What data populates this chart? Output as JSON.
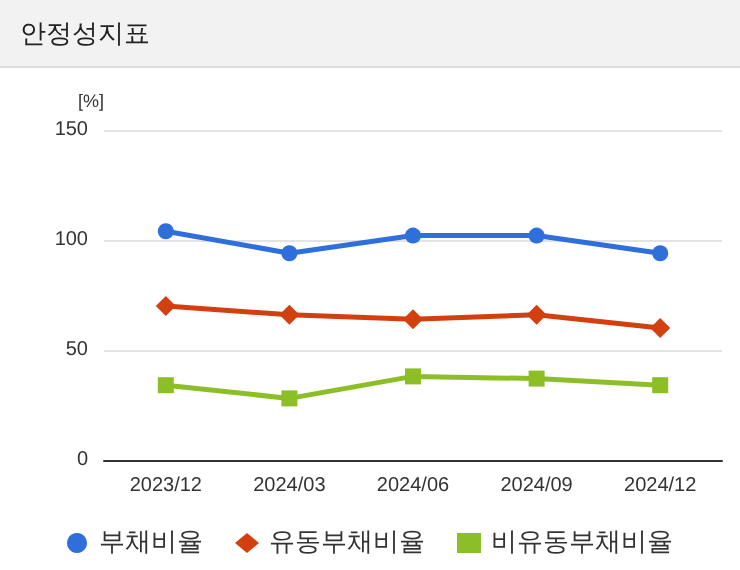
{
  "chart_data": {
    "type": "line",
    "title": "안정성지표",
    "ylabel": "[%]",
    "categories": [
      "2023/12",
      "2024/03",
      "2024/06",
      "2024/09",
      "2024/12"
    ],
    "series": [
      {
        "name": "부채비율",
        "color": "#2f6fdc",
        "marker": "circle",
        "values": [
          104,
          94,
          102,
          102,
          94
        ]
      },
      {
        "name": "유동부채비율",
        "color": "#d2400f",
        "marker": "diamond",
        "values": [
          70,
          66,
          64,
          66,
          60
        ]
      },
      {
        "name": "비유동부채비율",
        "color": "#8cbf26",
        "marker": "square",
        "values": [
          34,
          28,
          38,
          37,
          34
        ]
      }
    ],
    "ylim": [
      0,
      150
    ],
    "yticks": [
      0,
      50,
      100,
      150
    ],
    "grid": "y",
    "legend": "bottom",
    "line_style": "solid"
  }
}
